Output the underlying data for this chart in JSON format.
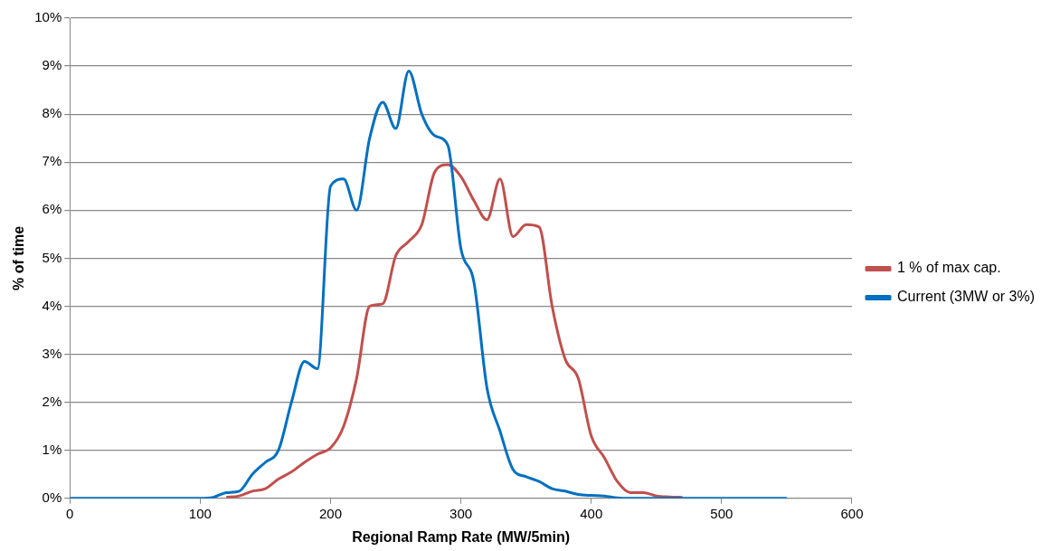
{
  "chart_data": {
    "type": "line",
    "xlabel": "Regional Ramp Rate (MW/5min)",
    "ylabel": "% of time",
    "x": [
      0,
      10,
      20,
      30,
      40,
      50,
      60,
      70,
      80,
      90,
      100,
      110,
      120,
      130,
      140,
      150,
      160,
      170,
      180,
      190,
      200,
      210,
      220,
      230,
      240,
      250,
      260,
      270,
      280,
      290,
      300,
      310,
      320,
      330,
      340,
      350,
      360,
      370,
      380,
      390,
      400,
      410,
      420,
      430,
      440,
      450,
      460,
      470,
      480,
      490,
      500,
      510,
      520,
      530,
      540,
      550
    ],
    "series": [
      {
        "name": "1 % of max cap.",
        "color": "#c0504d",
        "values": [
          null,
          null,
          null,
          null,
          null,
          null,
          null,
          null,
          null,
          null,
          null,
          null,
          0.02,
          0.05,
          0.15,
          0.2,
          0.4,
          0.55,
          0.75,
          0.92,
          1.05,
          1.5,
          2.5,
          4.0,
          4.05,
          5.05,
          5.35,
          5.7,
          6.8,
          6.95,
          6.7,
          6.2,
          5.8,
          6.65,
          5.45,
          5.7,
          5.65,
          4.0,
          2.9,
          2.5,
          1.3,
          0.85,
          0.35,
          0.12,
          0.12,
          0.05,
          0.03,
          0.02,
          null,
          null,
          null,
          null,
          null,
          null,
          null,
          null
        ]
      },
      {
        "name": "Current (3MW or 3%)",
        "color": "#0070c0",
        "values": [
          0,
          0,
          0,
          0,
          0,
          0,
          0,
          0,
          0,
          0,
          0,
          0.02,
          0.12,
          0.15,
          0.5,
          0.75,
          1.0,
          2.0,
          2.85,
          2.7,
          6.5,
          6.65,
          6.0,
          7.5,
          8.25,
          7.7,
          8.9,
          8.0,
          7.55,
          7.35,
          5.2,
          4.5,
          2.3,
          1.4,
          0.6,
          0.45,
          0.35,
          0.2,
          0.15,
          0.08,
          0.06,
          0.05,
          0.01,
          0,
          0,
          0,
          0,
          0,
          0,
          0,
          0,
          0,
          0,
          0,
          0,
          0
        ]
      }
    ],
    "xlim": [
      0,
      600
    ],
    "xticks": [
      0,
      100,
      200,
      300,
      400,
      500,
      600
    ],
    "ylim": [
      0,
      10
    ],
    "yticks": [
      {
        "value": 0,
        "label": "0%"
      },
      {
        "value": 1,
        "label": "1%"
      },
      {
        "value": 2,
        "label": "2%"
      },
      {
        "value": 3,
        "label": "3%"
      },
      {
        "value": 4,
        "label": "4%"
      },
      {
        "value": 5,
        "label": "5%"
      },
      {
        "value": 6,
        "label": "6%"
      },
      {
        "value": 7,
        "label": "7%"
      },
      {
        "value": 8,
        "label": "8%"
      },
      {
        "value": 9,
        "label": "9%"
      },
      {
        "value": 10,
        "label": "10%"
      }
    ],
    "grid": "y",
    "legend": "right",
    "marker": "none",
    "line_style": "solid"
  }
}
